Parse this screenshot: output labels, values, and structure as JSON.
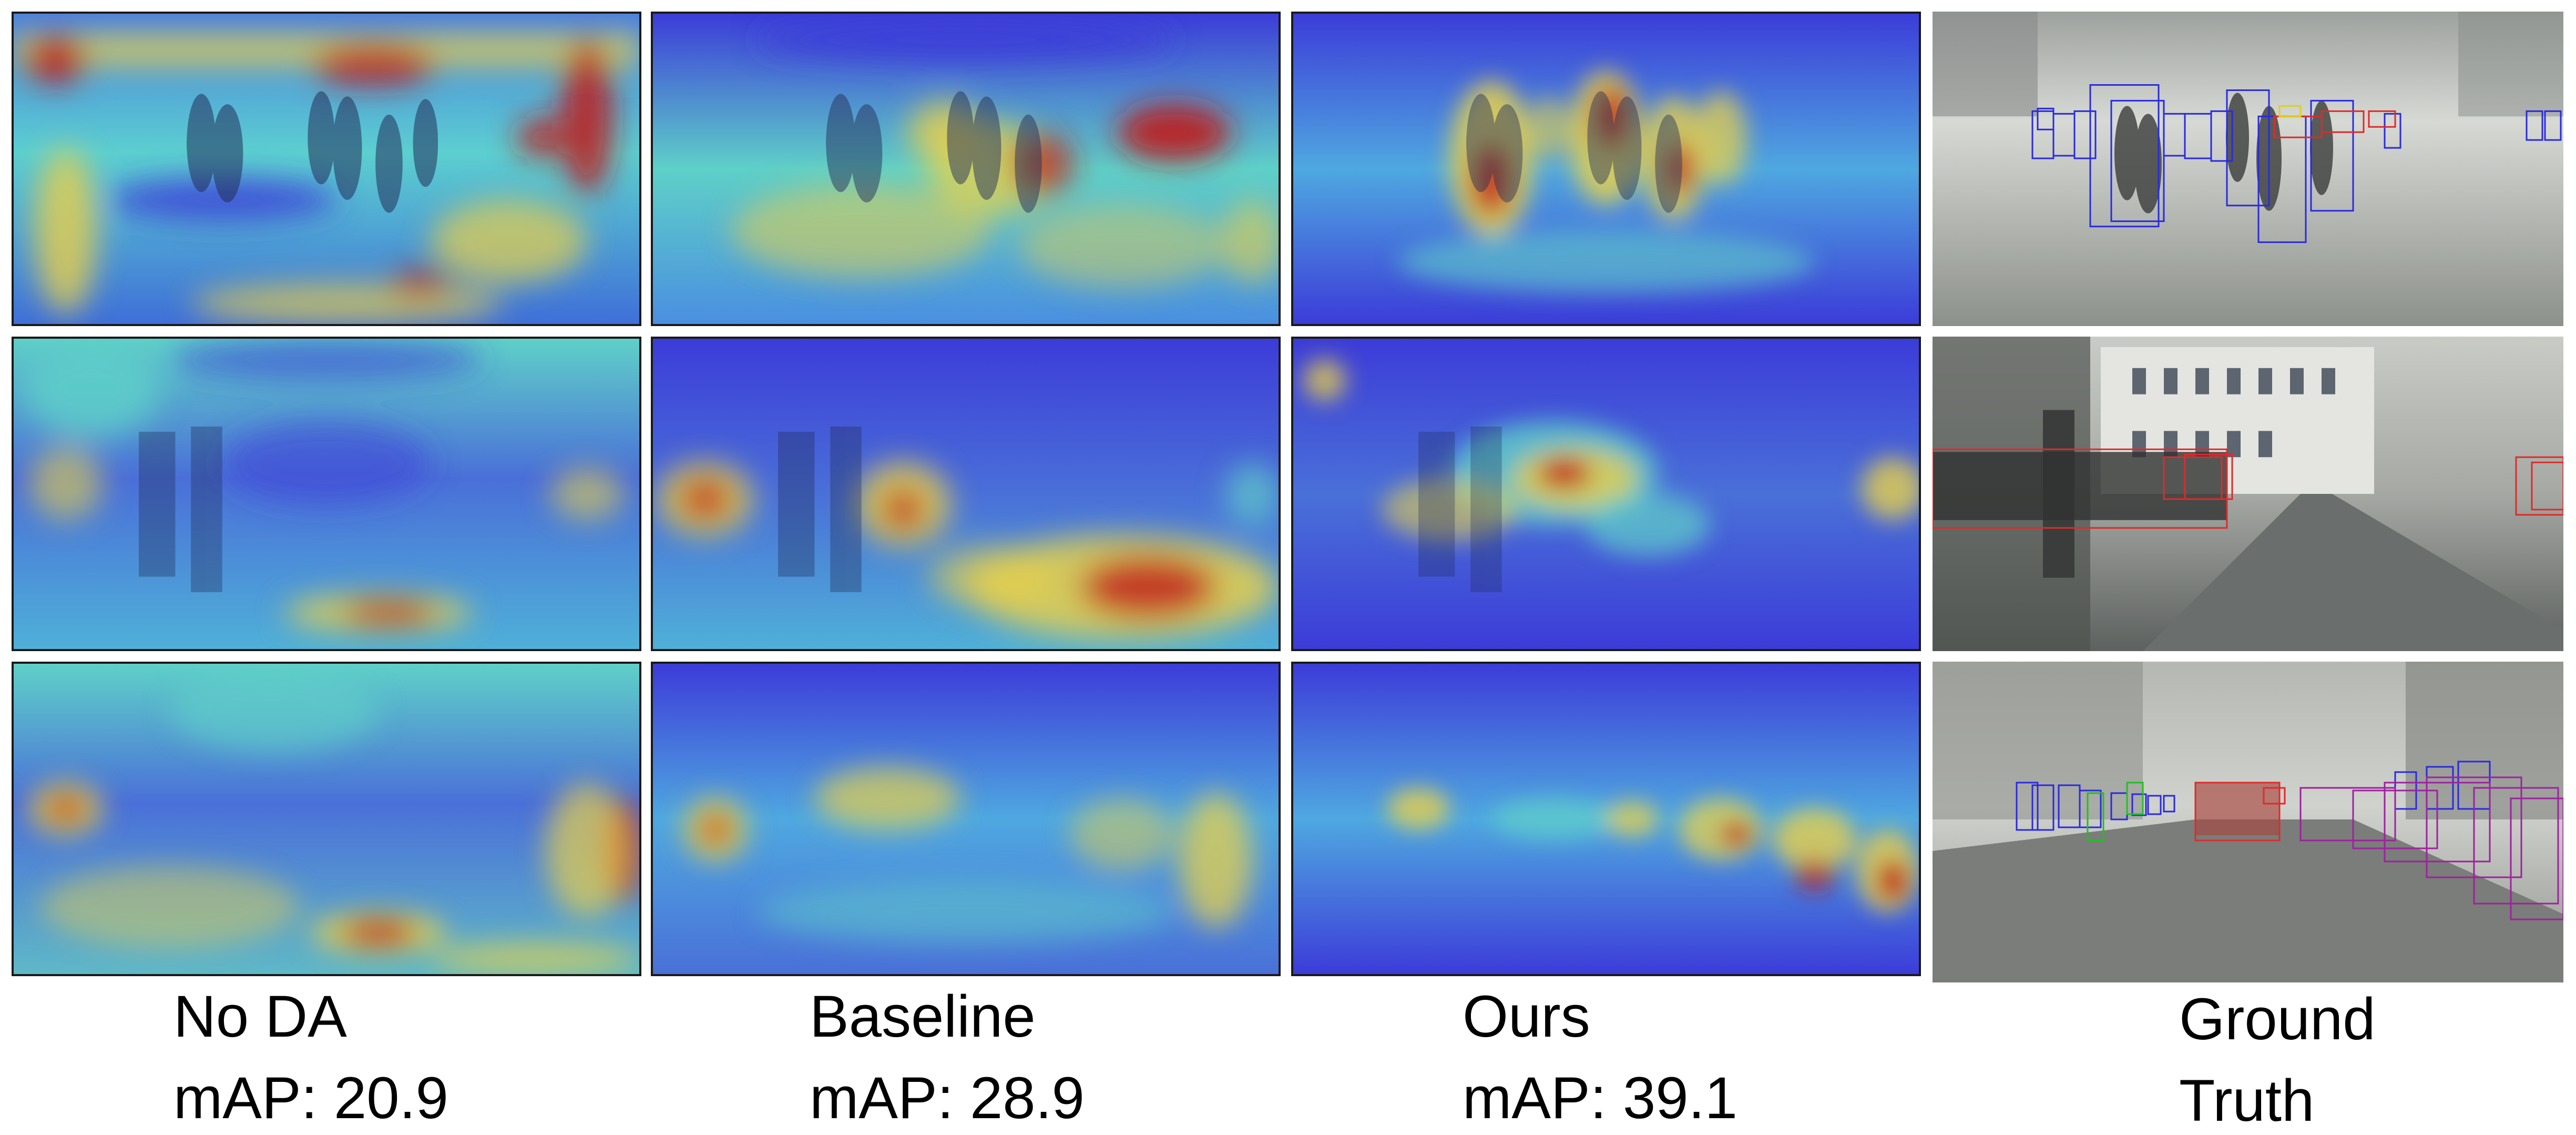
{
  "columns": [
    {
      "name": "No DA",
      "metric": "mAP: 20.9"
    },
    {
      "name": "Baseline",
      "metric": "mAP: 28.9"
    },
    {
      "name": "Ours",
      "metric": "mAP: 39.1"
    },
    {
      "name": "Ground",
      "metric": "Truth"
    }
  ],
  "colors": {
    "heat_low": "#3c3cd8",
    "heat_mid": "#3fd3c8",
    "heat_warm": "#e8d04a",
    "heat_high": "#c01818",
    "gt_box_person": "#2a2ae0",
    "gt_box_car": "#e02a2a",
    "gt_box_bicycle": "#a020a0",
    "gt_box_rider": "#20c020",
    "fog_bg": "#b9bcb6"
  }
}
